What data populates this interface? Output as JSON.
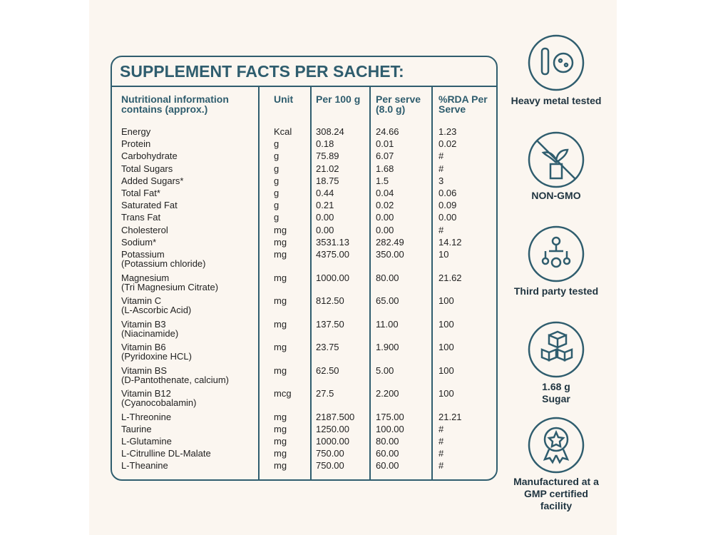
{
  "table": {
    "title": "SUPPLEMENT FACTS PER SACHET:",
    "columns": [
      "Nutritional information contains (approx.)",
      "Unit",
      "Per 100 g",
      "Per serve (8.0 g)",
      "%RDA Per Serve"
    ],
    "rows": [
      {
        "name": "Energy",
        "unit": "Kcal",
        "per_100g": "308.24",
        "per_serve": "24.66",
        "rda": "1.23"
      },
      {
        "name": "Protein",
        "unit": "g",
        "per_100g": "0.18",
        "per_serve": "0.01",
        "rda": "0.02"
      },
      {
        "name": "Carbohydrate",
        "unit": "g",
        "per_100g": "75.89",
        "per_serve": "6.07",
        "rda": "#"
      },
      {
        "name": "Total Sugars",
        "unit": "g",
        "per_100g": "21.02",
        "per_serve": "1.68",
        "rda": "#"
      },
      {
        "name": "Added Sugars*",
        "unit": "g",
        "per_100g": "18.75",
        "per_serve": "1.5",
        "rda": "3"
      },
      {
        "name": "Total Fat*",
        "unit": "g",
        "per_100g": "0.44",
        "per_serve": "0.04",
        "rda": "0.06"
      },
      {
        "name": "Saturated Fat",
        "unit": "g",
        "per_100g": "0.21",
        "per_serve": "0.02",
        "rda": "0.09"
      },
      {
        "name": "Trans Fat",
        "unit": "g",
        "per_100g": "0.00",
        "per_serve": "0.00",
        "rda": "0.00"
      },
      {
        "name": "Cholesterol",
        "unit": "mg",
        "per_100g": "0.00",
        "per_serve": "0.00",
        "rda": "#"
      },
      {
        "name": "Sodium*",
        "unit": "mg",
        "per_100g": "3531.13",
        "per_serve": "282.49",
        "rda": "14.12"
      },
      {
        "name": "Potassium",
        "source": "(Potassium chloride)",
        "unit": "mg",
        "per_100g": "4375.00",
        "per_serve": "350.00",
        "rda": "10"
      },
      {
        "name": "Magnesium",
        "source": "(Tri Magnesium Citrate)",
        "unit": "mg",
        "per_100g": "1000.00",
        "per_serve": "80.00",
        "rda": "21.62"
      },
      {
        "name": "Vitamin C",
        "source": "(L-Ascorbic Acid)",
        "unit": "mg",
        "per_100g": "812.50",
        "per_serve": "65.00",
        "rda": "100"
      },
      {
        "name": "Vitamin B3",
        "source": "(Niacinamide)",
        "unit": "mg",
        "per_100g": "137.50",
        "per_serve": "11.00",
        "rda": "100"
      },
      {
        "name": "Vitamin B6",
        "source": "(Pyridoxine HCL)",
        "unit": "mg",
        "per_100g": "23.75",
        "per_serve": "1.900",
        "rda": "100"
      },
      {
        "name": "Vitamin BS",
        "source": "(D-Pantothenate, calcium)",
        "unit": "mg",
        "per_100g": "62.50",
        "per_serve": "5.00",
        "rda": "100"
      },
      {
        "name": "Vitamin B12",
        "source": "(Cyanocobalamin)",
        "unit": "mcg",
        "per_100g": "27.5",
        "per_serve": "2.200",
        "rda": "100"
      },
      {
        "name": "L-Threonine",
        "unit": "mg",
        "per_100g": "2187.500",
        "per_serve": "175.00",
        "rda": "21.21"
      },
      {
        "name": "Taurine",
        "unit": "mg",
        "per_100g": "1250.00",
        "per_serve": "100.00",
        "rda": "#"
      },
      {
        "name": "L-Glutamine",
        "unit": "mg",
        "per_100g": "1000.00",
        "per_serve": "80.00",
        "rda": "#"
      },
      {
        "name": "L-Citrulline DL-Malate",
        "unit": "mg",
        "per_100g": "750.00",
        "per_serve": "60.00",
        "rda": "#"
      },
      {
        "name": "L-Theanine",
        "unit": "mg",
        "per_100g": "750.00",
        "per_serve": "60.00",
        "rda": "#"
      }
    ]
  },
  "badges": [
    "Heavy metal tested",
    "NON-GMO",
    "Third party tested",
    "1.68 g Sugar",
    "Manufactured at a GMP certified facility"
  ]
}
